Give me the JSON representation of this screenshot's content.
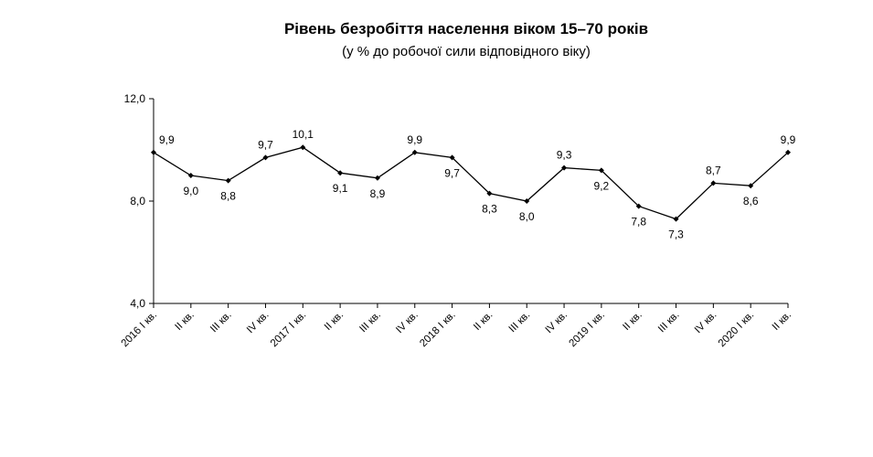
{
  "chart_data": {
    "type": "line",
    "title": "Рівень безробіття населення віком 15–70 років",
    "subtitle": "(у % до робочої сили відповідного віку)",
    "categories": [
      "2016  I кв.",
      "II кв.",
      "III кв.",
      "IV кв.",
      "2017  I кв.",
      "II кв.",
      "III кв.",
      "IV кв.",
      "2018  I кв.",
      "II кв.",
      "III кв.",
      "IV кв.",
      "2019 I кв.",
      "II кв.",
      "III кв.",
      "IV кв.",
      "2020 I кв.",
      "II кв."
    ],
    "values": [
      9.9,
      9.0,
      8.8,
      9.7,
      10.1,
      9.1,
      8.9,
      9.9,
      9.7,
      8.3,
      8.0,
      9.3,
      9.2,
      7.8,
      7.3,
      8.7,
      8.6,
      9.9
    ],
    "data_labels": [
      "9,9",
      "9,0",
      "8,8",
      "9,7",
      "10,1",
      "9,1",
      "8,9",
      "9,9",
      "9,7",
      "8,3",
      "8,0",
      "9,3",
      "9,2",
      "7,8",
      "7,3",
      "8,7",
      "8,6",
      "9,9"
    ],
    "ylim": [
      4.0,
      12.0
    ],
    "yticks": [
      4.0,
      8.0,
      12.0
    ],
    "ytick_labels": [
      "4,0",
      "8,0",
      "12,0"
    ],
    "xlabel": "",
    "ylabel": "",
    "grid": false,
    "legend": "none",
    "line_color": "#000000"
  }
}
